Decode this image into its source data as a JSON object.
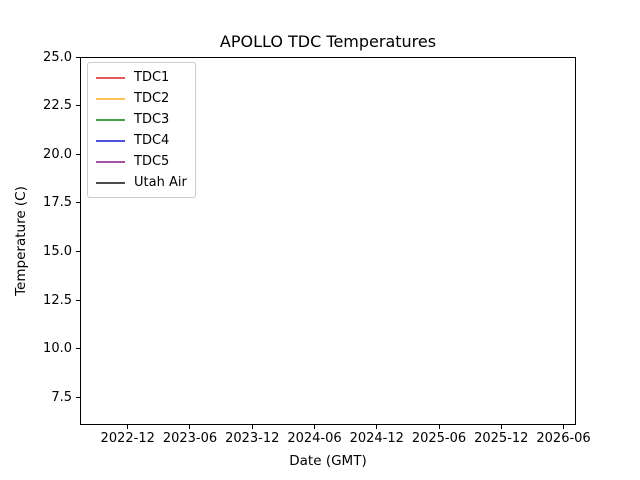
{
  "figure": {
    "background_color": "#ffffff",
    "axes_border_color": "#000000",
    "legend_border_color": "#cccccc"
  },
  "chart_data": {
    "type": "line",
    "title": "APOLLO TDC Temperatures",
    "xlabel": "Date (GMT)",
    "ylabel": "Temperature (C)",
    "grid": false,
    "legend_position": "upper-left",
    "x_axis": {
      "unit": "months-since-2022-01",
      "lim": [
        6.4,
        54.2
      ],
      "ticks": [
        {
          "value": 11,
          "label": "2022-12"
        },
        {
          "value": 17,
          "label": "2023-06"
        },
        {
          "value": 23,
          "label": "2023-12"
        },
        {
          "value": 29,
          "label": "2024-06"
        },
        {
          "value": 35,
          "label": "2024-12"
        },
        {
          "value": 41,
          "label": "2025-06"
        },
        {
          "value": 47,
          "label": "2025-12"
        },
        {
          "value": 53,
          "label": "2026-06"
        }
      ]
    },
    "y_axis": {
      "lim": [
        6.07,
        25.0
      ],
      "ticks": [
        {
          "value": 25.0,
          "label": "25.0"
        },
        {
          "value": 22.5,
          "label": "22.5"
        },
        {
          "value": 20.0,
          "label": "20.0"
        },
        {
          "value": 17.5,
          "label": "17.5"
        },
        {
          "value": 15.0,
          "label": "15.0"
        },
        {
          "value": 12.5,
          "label": "12.5"
        },
        {
          "value": 10.0,
          "label": "10.0"
        },
        {
          "value": 7.5,
          "label": "7.5"
        }
      ]
    },
    "series": [
      {
        "name": "TDC1",
        "color": "#e25c5c",
        "points": []
      },
      {
        "name": "TDC2",
        "color": "#ffc056",
        "points": []
      },
      {
        "name": "TDC3",
        "color": "#48a048",
        "points": []
      },
      {
        "name": "TDC4",
        "color": "#5050dd",
        "points": []
      },
      {
        "name": "TDC5",
        "color": "#a352a3",
        "points": []
      },
      {
        "name": "Utah Air",
        "color": "#4d4d4d",
        "points": []
      }
    ]
  }
}
